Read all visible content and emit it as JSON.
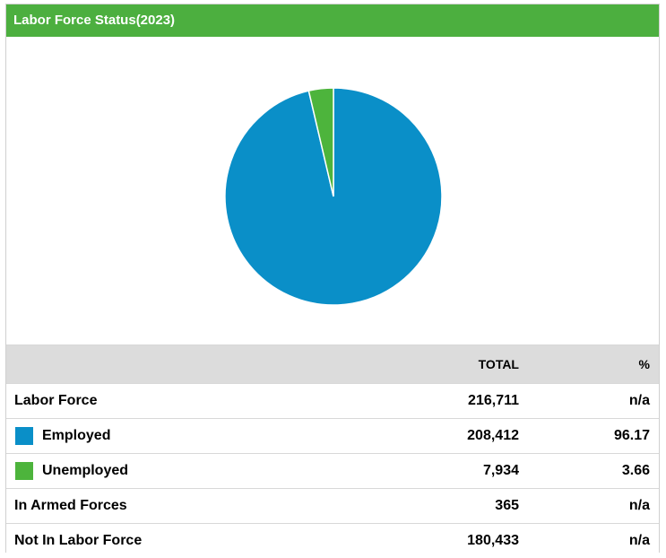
{
  "header": {
    "title": "Labor Force Status(2023)"
  },
  "chart": {
    "type": "pie"
  },
  "table": {
    "columns": [
      "TOTAL",
      "%"
    ],
    "rows": [
      {
        "label": "Labor Force",
        "total": {
          "value": 216711,
          "label": "216,711"
        },
        "percent": "n/a"
      },
      {
        "label": "Employed",
        "color": "#0a8fc8",
        "total": {
          "value": 208412,
          "label": "208,412"
        },
        "percent": 96.17
      },
      {
        "label": "Unemployed",
        "color": "#4db43c",
        "total": {
          "value": 7934,
          "label": "7,934"
        },
        "percent": 3.66
      },
      {
        "label": "In Armed Forces",
        "total": {
          "value": 365,
          "label": "365"
        },
        "percent": "n/a"
      },
      {
        "label": "Not In Labor Force",
        "total": {
          "value": 180433,
          "label": "180,433"
        },
        "percent": "n/a"
      }
    ]
  }
}
